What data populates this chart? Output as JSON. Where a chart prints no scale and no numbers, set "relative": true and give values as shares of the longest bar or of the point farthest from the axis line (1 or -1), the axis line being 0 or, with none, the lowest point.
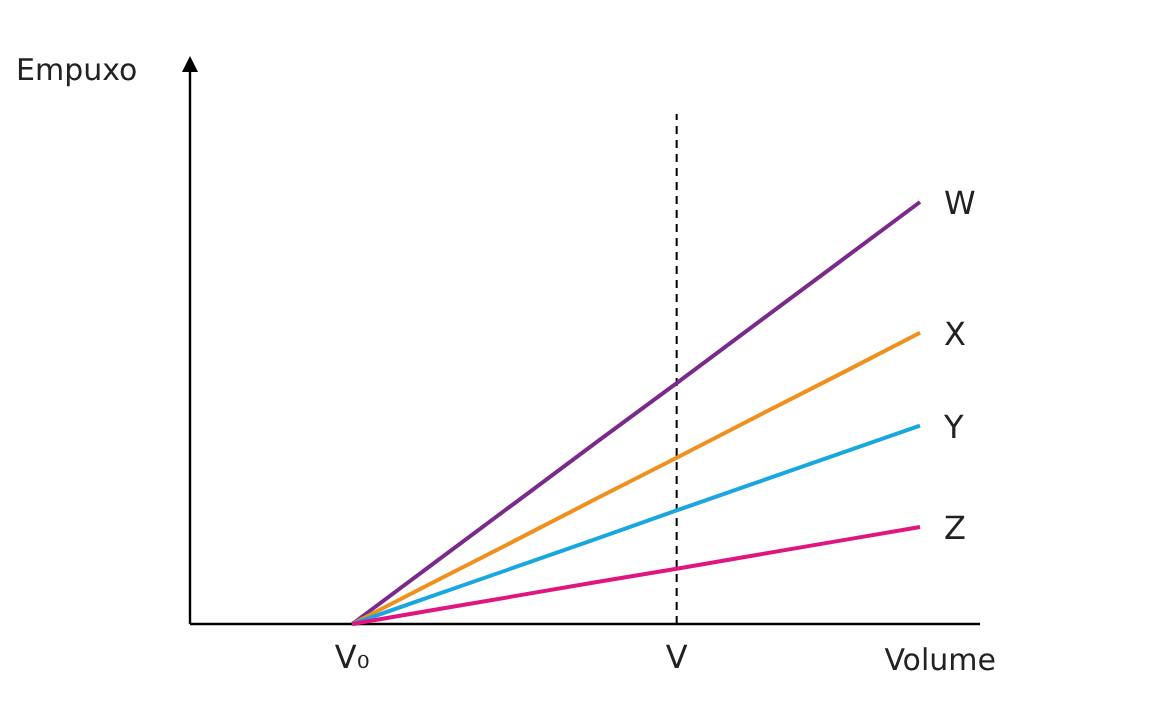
{
  "chart_data": {
    "type": "line",
    "relative": true,
    "xlabel": "Volume",
    "ylabel": "Empuxo",
    "categories": [
      null,
      null,
      "V₀",
      null,
      null,
      null,
      "V",
      null,
      null,
      null
    ],
    "ref_lines": [
      {
        "axis": "x",
        "value": "V",
        "line_style": "dashed",
        "color": "#000000"
      }
    ],
    "grid": false,
    "legend": false,
    "marker": "none",
    "line_style": "solid",
    "series": [
      {
        "name": "W",
        "color": "#7b2a8c",
        "values": [
          null,
          null,
          0,
          0.143,
          0.286,
          0.429,
          0.571,
          0.714,
          0.857,
          1
        ]
      },
      {
        "name": "X",
        "color": "#f0901e",
        "values": [
          null,
          null,
          0,
          0.099,
          0.197,
          0.296,
          0.394,
          0.493,
          0.591,
          0.69
        ]
      },
      {
        "name": "Y",
        "color": "#1aa7e0",
        "values": [
          null,
          null,
          0,
          0.067,
          0.134,
          0.201,
          0.269,
          0.336,
          0.403,
          0.47
        ]
      },
      {
        "name": "Z",
        "color": "#e0157f",
        "values": [
          null,
          null,
          0,
          0.033,
          0.066,
          0.099,
          0.131,
          0.164,
          0.197,
          0.23
        ]
      }
    ]
  }
}
